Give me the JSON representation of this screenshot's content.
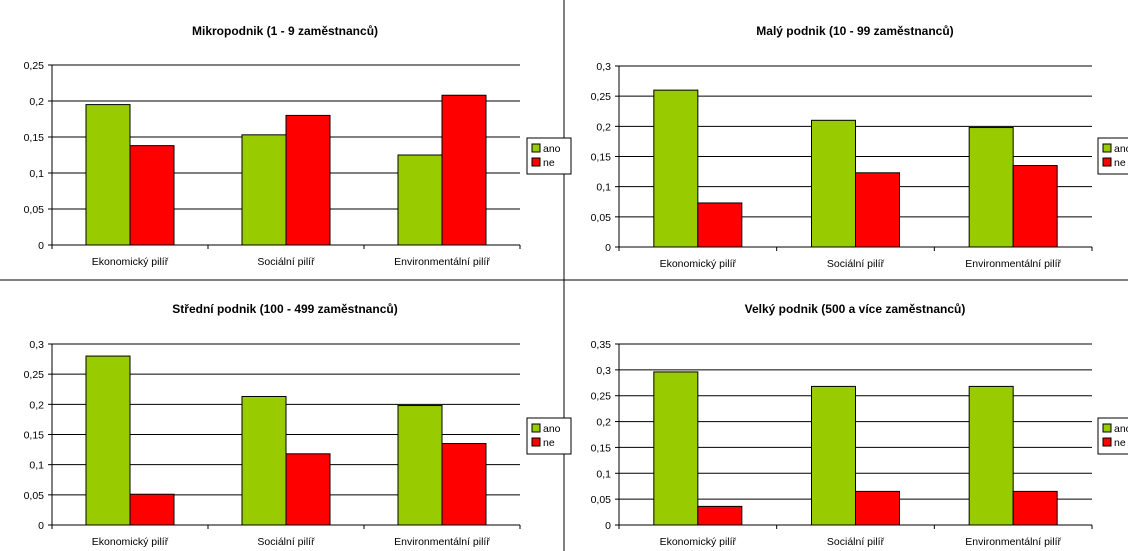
{
  "colors": {
    "ano": "#99cc00",
    "ne": "#ff0000",
    "gridline": "#000000",
    "background": "#ffffff"
  },
  "chart_data": [
    {
      "type": "bar",
      "title": "Mikropodnik (1 - 9 zaměstnanců)",
      "categories": [
        "Ekonomický pilíř",
        "Sociální pilíř",
        "Environmentální pilíř"
      ],
      "series": [
        {
          "name": "ano",
          "values": [
            0.195,
            0.153,
            0.125
          ]
        },
        {
          "name": "ne",
          "values": [
            0.138,
            0.18,
            0.208
          ]
        }
      ],
      "ylim": [
        0,
        0.25
      ],
      "yticks": [
        "0",
        "0,05",
        "0,1",
        "0,15",
        "0,2",
        "0,25"
      ],
      "grid": true,
      "legend": "right"
    },
    {
      "type": "bar",
      "title": "Malý podnik (10 - 99 zaměstnanců)",
      "categories": [
        "Ekonomický pilíř",
        "Sociální pilíř",
        "Environmentální pilíř"
      ],
      "series": [
        {
          "name": "ano",
          "values": [
            0.26,
            0.21,
            0.198
          ]
        },
        {
          "name": "ne",
          "values": [
            0.073,
            0.123,
            0.135
          ]
        }
      ],
      "ylim": [
        0,
        0.3
      ],
      "yticks": [
        "0",
        "0,05",
        "0,1",
        "0,15",
        "0,2",
        "0,25",
        "0,3"
      ],
      "grid": true,
      "legend": "right"
    },
    {
      "type": "bar",
      "title": "Střední podnik (100 - 499 zaměstnanců)",
      "categories": [
        "Ekonomický pilíř",
        "Sociální pilíř",
        "Environmentální pilíř"
      ],
      "series": [
        {
          "name": "ano",
          "values": [
            0.28,
            0.213,
            0.198
          ]
        },
        {
          "name": "ne",
          "values": [
            0.051,
            0.118,
            0.135
          ]
        }
      ],
      "ylim": [
        0,
        0.3
      ],
      "yticks": [
        "0",
        "0,05",
        "0,1",
        "0,15",
        "0,2",
        "0,25",
        "0,3"
      ],
      "grid": true,
      "legend": "right"
    },
    {
      "type": "bar",
      "title": "Velký podnik (500 a více zaměstnanců)",
      "categories": [
        "Ekonomický pilíř",
        "Sociální pilíř",
        "Environmentální pilíř"
      ],
      "series": [
        {
          "name": "ano",
          "values": [
            0.296,
            0.268,
            0.268
          ]
        },
        {
          "name": "ne",
          "values": [
            0.036,
            0.065,
            0.065
          ]
        }
      ],
      "ylim": [
        0,
        0.35
      ],
      "yticks": [
        "0",
        "0,05",
        "0,1",
        "0,15",
        "0,2",
        "0,25",
        "0,3",
        "0,35"
      ],
      "grid": true,
      "legend": "right"
    }
  ]
}
